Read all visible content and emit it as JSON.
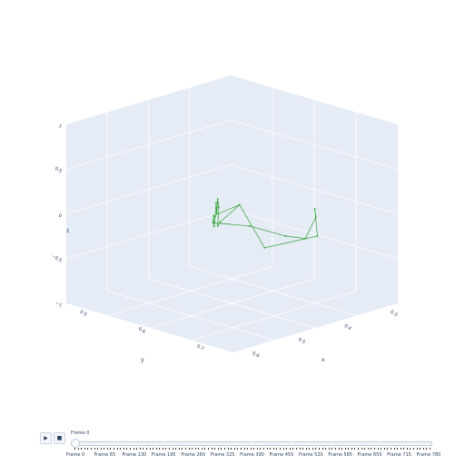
{
  "chart_data": {
    "type": "scatter3d",
    "mode": "lines+markers",
    "line_color": "#2ca02c",
    "marker_color": "#2ca02c",
    "scene_bgcolor": "#e5ecf6",
    "grid_color": "#ffffff",
    "xaxis": {
      "title": "x",
      "ticks": [
        "0.3",
        "0.4",
        "0.5",
        "0.6"
      ]
    },
    "yaxis": {
      "title": "y",
      "ticks": [
        "0.5",
        "0.6",
        "0.7"
      ]
    },
    "zaxis": {
      "title": "z",
      "ticks": [
        "−1",
        "−0.5",
        "0",
        "0.5",
        "1"
      ]
    },
    "points": [
      {
        "x": 0.55,
        "y": 0.68,
        "z": -0.2
      },
      {
        "x": 0.45,
        "y": 0.55,
        "z": -0.05
      },
      {
        "x": 0.4,
        "y": 0.5,
        "z": 0.05
      },
      {
        "x": 0.42,
        "y": 0.52,
        "z": 0.2
      },
      {
        "x": 0.4,
        "y": 0.5,
        "z": 0.35
      },
      {
        "x": 0.38,
        "y": 0.48,
        "z": 0.25
      },
      {
        "x": 0.37,
        "y": 0.47,
        "z": 0.4
      },
      {
        "x": 0.35,
        "y": 0.45,
        "z": 0.3
      },
      {
        "x": 0.33,
        "y": 0.43,
        "z": 0.25
      },
      {
        "x": 0.32,
        "y": 0.42,
        "z": 0.4
      },
      {
        "x": 0.31,
        "y": 0.41,
        "z": 0.35
      },
      {
        "x": 0.38,
        "y": 0.55,
        "z": 0.0
      },
      {
        "x": 0.35,
        "y": 0.6,
        "z": -0.15
      },
      {
        "x": 0.28,
        "y": 0.58,
        "z": -0.05
      },
      {
        "x": 0.3,
        "y": 0.62,
        "z": 0.1
      },
      {
        "x": 0.28,
        "y": 0.6,
        "z": 0.25
      },
      {
        "x": 0.33,
        "y": 0.65,
        "z": -0.2
      },
      {
        "x": 0.4,
        "y": 0.6,
        "z": -0.35
      },
      {
        "x": 0.55,
        "y": 0.68,
        "z": -0.2
      },
      {
        "x": 0.32,
        "y": 0.42,
        "z": 0.4
      }
    ]
  },
  "animation": {
    "play_icon": "play-icon",
    "stop_icon": "stop-icon",
    "current_value_label": "Frame 0",
    "frame_labels": [
      "Frame 0",
      "Frame 65",
      "Frame 130",
      "Frame 195",
      "Frame 260",
      "Frame 325",
      "Frame 390",
      "Frame 455",
      "Frame 520",
      "Frame 585",
      "Frame 650",
      "Frame 715",
      "Frame 780"
    ],
    "current_frame": 0,
    "total_frames": 781
  }
}
